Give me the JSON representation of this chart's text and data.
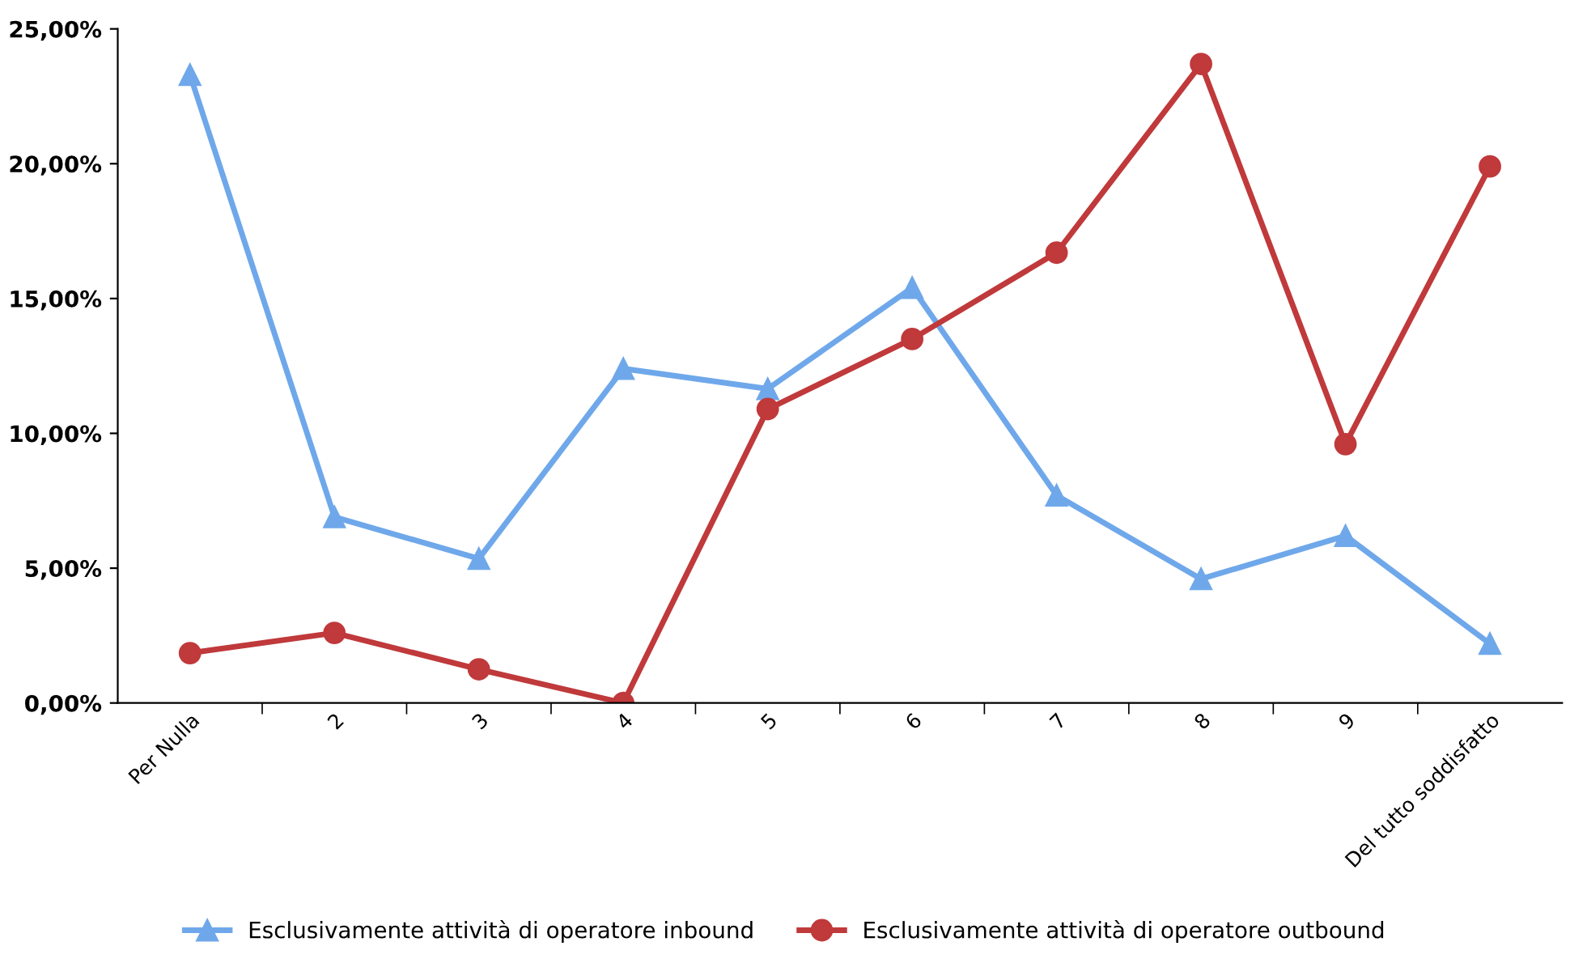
{
  "chart_data": {
    "type": "line",
    "categories": [
      "Per Nulla",
      "2",
      "3",
      "4",
      "5",
      "6",
      "7",
      "8",
      "9",
      "Del tutto soddisfatto"
    ],
    "series": [
      {
        "name": "Esclusivamente attività di operatore inbound",
        "color": "#6fa8ea",
        "marker": "triangle",
        "values": [
          23.3,
          6.9,
          5.35,
          12.4,
          11.65,
          15.4,
          7.7,
          4.6,
          6.2,
          2.2
        ]
      },
      {
        "name": "Esclusivamente attività di operatore outbound",
        "color": "#c0393b",
        "marker": "circle",
        "values": [
          1.85,
          2.6,
          1.25,
          0,
          10.9,
          13.5,
          16.7,
          23.7,
          9.6,
          19.9
        ]
      }
    ],
    "ylim": [
      0,
      25
    ],
    "yticks": [
      {
        "value": 0,
        "label": "0,00%"
      },
      {
        "value": 5,
        "label": "5,00%"
      },
      {
        "value": 10,
        "label": "10,00%"
      },
      {
        "value": 15,
        "label": "15,00%"
      },
      {
        "value": 20,
        "label": "20,00%"
      },
      {
        "value": 25,
        "label": "25,00%"
      }
    ],
    "grid": false,
    "legend": "bottom",
    "line_style": "solid"
  }
}
